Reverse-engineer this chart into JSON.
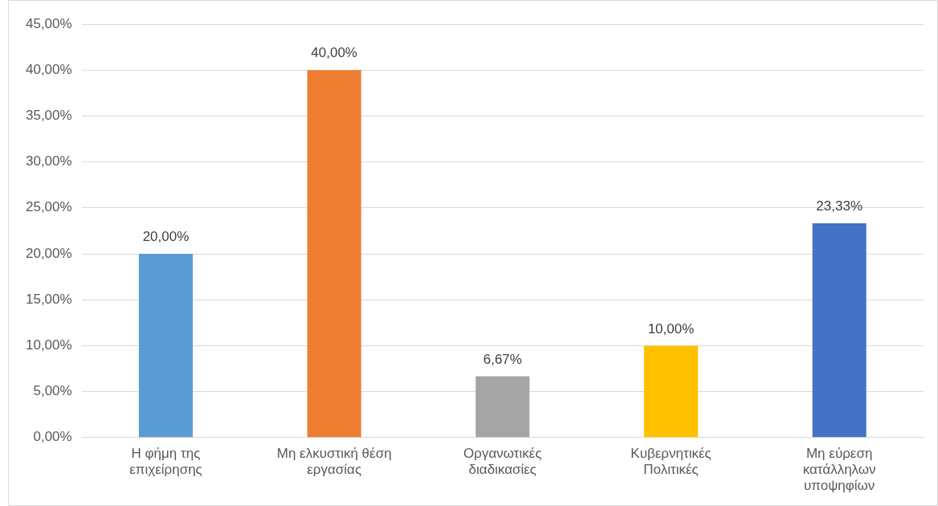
{
  "chart_data": {
    "type": "bar",
    "categories": [
      "Η φήμη της επιχείρησης",
      "Μη ελκυστική θέση εργασίας",
      "Οργανωτικές διαδικασίες",
      "Κυβερνητικές Πολιτικές",
      "Μη εύρεση κατάλληλων υποψηφίων"
    ],
    "values": [
      20,
      40,
      6.67,
      10,
      23.33
    ],
    "colors": [
      "#5b9bd5",
      "#ed7d31",
      "#a5a5a5",
      "#ffc000",
      "#4472c4"
    ],
    "value_labels": [
      "20,00%",
      "40,00%",
      "6,67%",
      "10,00%",
      "23,33%"
    ],
    "ylim": [
      0,
      45
    ],
    "yticks": [
      {
        "value": 0,
        "label": "0,00%"
      },
      {
        "value": 5,
        "label": "5,00%"
      },
      {
        "value": 10,
        "label": "10,00%"
      },
      {
        "value": 15,
        "label": "15,00%"
      },
      {
        "value": 20,
        "label": "20,00%"
      },
      {
        "value": 25,
        "label": "25,00%"
      },
      {
        "value": 30,
        "label": "30,00%"
      },
      {
        "value": 35,
        "label": "35,00%"
      },
      {
        "value": 40,
        "label": "40,00%"
      },
      {
        "value": 45,
        "label": "45,00%"
      }
    ],
    "grid": "y",
    "legend": false
  }
}
